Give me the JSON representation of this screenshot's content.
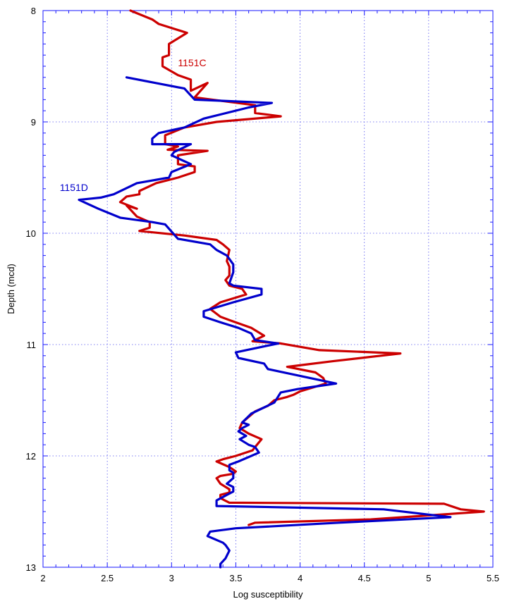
{
  "chart_data": {
    "type": "line",
    "xlabel": "Log susceptibility",
    "ylabel": "Depth (mcd)",
    "xlim": [
      2,
      5.5
    ],
    "ylim": [
      8,
      13
    ],
    "y_inverted": true,
    "grid": true,
    "x_ticks": [
      "2",
      "2.5",
      "3",
      "3.5",
      "4",
      "4.5",
      "5",
      "5.5"
    ],
    "y_ticks": [
      "8",
      "9",
      "10",
      "11",
      "12",
      "13"
    ],
    "series": [
      {
        "name": "1151C",
        "color": "#cc0000",
        "points": [
          [
            2.68,
            8.0
          ],
          [
            2.85,
            8.08
          ],
          [
            2.9,
            8.12
          ],
          [
            3.12,
            8.2
          ],
          [
            2.98,
            8.3
          ],
          [
            2.98,
            8.4
          ],
          [
            2.93,
            8.42
          ],
          [
            2.93,
            8.5
          ],
          [
            3.05,
            8.58
          ],
          [
            3.15,
            8.62
          ],
          [
            3.15,
            8.72
          ],
          [
            3.28,
            8.65
          ],
          [
            3.18,
            8.78
          ],
          [
            3.65,
            8.85
          ],
          [
            3.65,
            8.92
          ],
          [
            3.85,
            8.95
          ],
          [
            3.35,
            9.0
          ],
          [
            3.1,
            9.05
          ],
          [
            2.95,
            9.12
          ],
          [
            2.95,
            9.2
          ],
          [
            3.05,
            9.22
          ],
          [
            2.97,
            9.25
          ],
          [
            3.28,
            9.26
          ],
          [
            3.05,
            9.3
          ],
          [
            3.05,
            9.38
          ],
          [
            3.18,
            9.4
          ],
          [
            3.18,
            9.45
          ],
          [
            3.05,
            9.5
          ],
          [
            2.88,
            9.55
          ],
          [
            2.75,
            9.62
          ],
          [
            2.75,
            9.65
          ],
          [
            2.65,
            9.67
          ],
          [
            2.6,
            9.72
          ],
          [
            2.73,
            9.78
          ],
          [
            2.65,
            9.75
          ],
          [
            2.73,
            9.85
          ],
          [
            2.83,
            9.9
          ],
          [
            2.83,
            9.95
          ],
          [
            2.75,
            9.98
          ],
          [
            3.1,
            10.02
          ],
          [
            3.35,
            10.06
          ],
          [
            3.4,
            10.1
          ],
          [
            3.45,
            10.15
          ],
          [
            3.43,
            10.25
          ],
          [
            3.45,
            10.3
          ],
          [
            3.45,
            10.38
          ],
          [
            3.42,
            10.42
          ],
          [
            3.45,
            10.47
          ],
          [
            3.55,
            10.5
          ],
          [
            3.58,
            10.55
          ],
          [
            3.38,
            10.62
          ],
          [
            3.3,
            10.68
          ],
          [
            3.38,
            10.75
          ],
          [
            3.45,
            10.78
          ],
          [
            3.62,
            10.85
          ],
          [
            3.72,
            10.92
          ],
          [
            3.63,
            10.97
          ],
          [
            3.85,
            10.99
          ],
          [
            4.15,
            11.05
          ],
          [
            4.78,
            11.08
          ],
          [
            4.25,
            11.15
          ],
          [
            3.9,
            11.2
          ],
          [
            4.12,
            11.25
          ],
          [
            4.18,
            11.3
          ],
          [
            4.2,
            11.35
          ],
          [
            4.0,
            11.42
          ],
          [
            3.95,
            11.45
          ],
          [
            3.9,
            11.47
          ],
          [
            3.8,
            11.5
          ],
          [
            3.75,
            11.55
          ],
          [
            3.65,
            11.6
          ],
          [
            3.55,
            11.7
          ],
          [
            3.53,
            11.75
          ],
          [
            3.6,
            11.8
          ],
          [
            3.7,
            11.85
          ],
          [
            3.65,
            11.92
          ],
          [
            3.63,
            11.95
          ],
          [
            3.5,
            12.0
          ],
          [
            3.4,
            12.03
          ],
          [
            3.35,
            12.05
          ],
          [
            3.45,
            12.1
          ],
          [
            3.5,
            12.14
          ],
          [
            3.48,
            12.16
          ],
          [
            3.38,
            12.18
          ],
          [
            3.35,
            12.2
          ],
          [
            3.38,
            12.25
          ],
          [
            3.45,
            12.3
          ],
          [
            3.45,
            12.33
          ],
          [
            3.38,
            12.35
          ],
          [
            3.38,
            12.38
          ],
          [
            3.45,
            12.42
          ],
          [
            5.12,
            12.43
          ],
          [
            5.25,
            12.48
          ],
          [
            5.43,
            12.5
          ],
          [
            4.55,
            12.57
          ],
          [
            3.65,
            12.6
          ],
          [
            3.6,
            12.62
          ]
        ]
      },
      {
        "name": "1151D",
        "color": "#0000cc",
        "points": [
          [
            2.65,
            8.6
          ],
          [
            3.1,
            8.7
          ],
          [
            3.18,
            8.8
          ],
          [
            3.78,
            8.83
          ],
          [
            3.6,
            8.87
          ],
          [
            3.25,
            8.97
          ],
          [
            3.1,
            9.05
          ],
          [
            2.9,
            9.1
          ],
          [
            2.85,
            9.15
          ],
          [
            2.85,
            9.2
          ],
          [
            3.15,
            9.2
          ],
          [
            3.02,
            9.27
          ],
          [
            3.0,
            9.3
          ],
          [
            3.15,
            9.38
          ],
          [
            3.0,
            9.45
          ],
          [
            2.98,
            9.5
          ],
          [
            2.73,
            9.55
          ],
          [
            2.55,
            9.65
          ],
          [
            2.45,
            9.68
          ],
          [
            2.28,
            9.7
          ],
          [
            2.43,
            9.78
          ],
          [
            2.6,
            9.86
          ],
          [
            2.85,
            9.9
          ],
          [
            2.95,
            9.92
          ],
          [
            3.05,
            10.05
          ],
          [
            3.3,
            10.1
          ],
          [
            3.35,
            10.15
          ],
          [
            3.43,
            10.2
          ],
          [
            3.48,
            10.28
          ],
          [
            3.48,
            10.35
          ],
          [
            3.45,
            10.45
          ],
          [
            3.48,
            10.47
          ],
          [
            3.7,
            10.5
          ],
          [
            3.7,
            10.55
          ],
          [
            3.48,
            10.62
          ],
          [
            3.25,
            10.7
          ],
          [
            3.25,
            10.75
          ],
          [
            3.38,
            10.8
          ],
          [
            3.52,
            10.85
          ],
          [
            3.62,
            10.9
          ],
          [
            3.65,
            10.96
          ],
          [
            3.83,
            10.99
          ],
          [
            3.58,
            11.05
          ],
          [
            3.5,
            11.07
          ],
          [
            3.52,
            11.12
          ],
          [
            3.72,
            11.17
          ],
          [
            3.75,
            11.22
          ],
          [
            4.28,
            11.35
          ],
          [
            4.1,
            11.38
          ],
          [
            3.98,
            11.4
          ],
          [
            3.85,
            11.43
          ],
          [
            3.8,
            11.52
          ],
          [
            3.62,
            11.62
          ],
          [
            3.55,
            11.7
          ],
          [
            3.6,
            11.72
          ],
          [
            3.55,
            11.75
          ],
          [
            3.52,
            11.78
          ],
          [
            3.55,
            11.8
          ],
          [
            3.58,
            11.82
          ],
          [
            3.53,
            11.85
          ],
          [
            3.6,
            11.9
          ],
          [
            3.65,
            11.92
          ],
          [
            3.68,
            11.97
          ],
          [
            3.52,
            12.05
          ],
          [
            3.45,
            12.08
          ],
          [
            3.45,
            12.13
          ],
          [
            3.48,
            12.15
          ],
          [
            3.48,
            12.2
          ],
          [
            3.43,
            12.25
          ],
          [
            3.48,
            12.28
          ],
          [
            3.48,
            12.32
          ],
          [
            3.43,
            12.35
          ],
          [
            3.35,
            12.4
          ],
          [
            3.35,
            12.45
          ],
          [
            4.65,
            12.48
          ],
          [
            5.17,
            12.55
          ],
          [
            4.3,
            12.6
          ],
          [
            3.5,
            12.65
          ],
          [
            3.3,
            12.68
          ],
          [
            3.28,
            12.72
          ],
          [
            3.4,
            12.78
          ],
          [
            3.42,
            12.8
          ],
          [
            3.45,
            12.85
          ],
          [
            3.42,
            12.92
          ],
          [
            3.38,
            12.97
          ],
          [
            3.38,
            13.0
          ]
        ]
      }
    ]
  }
}
